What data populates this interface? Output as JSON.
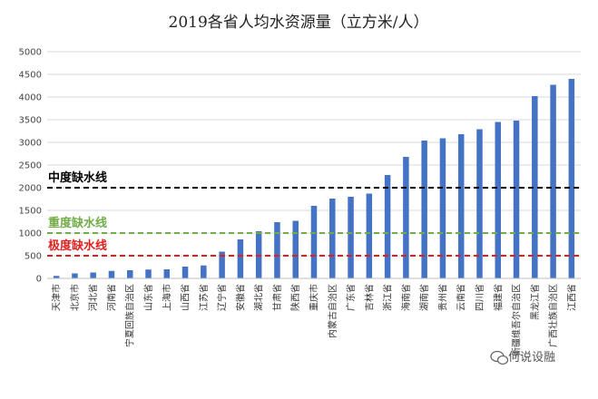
{
  "chart_data": {
    "type": "bar",
    "title": "2019各省人均水资源量（立方米/人）",
    "xlabel": "",
    "ylabel": "",
    "ylim": [
      0,
      5000
    ],
    "yticks": [
      0,
      500,
      1000,
      1500,
      2000,
      2500,
      3000,
      3500,
      4000,
      4500,
      5000
    ],
    "bar_color": "#4472c4",
    "categories": [
      "天津市",
      "北京市",
      "河北省",
      "河南省",
      "宁夏回族自治区",
      "山东省",
      "上海市",
      "山西省",
      "江苏省",
      "辽宁省",
      "安徽省",
      "湖北省",
      "甘肃省",
      "陕西省",
      "重庆市",
      "内蒙古自治区",
      "广东省",
      "吉林省",
      "浙江省",
      "海南省",
      "湖南省",
      "贵州省",
      "云南省",
      "四川省",
      "福建省",
      "新疆维吾尔自治区",
      "黑龙江省",
      "广西壮族自治区",
      "江西省"
    ],
    "values": [
      55,
      110,
      130,
      165,
      180,
      195,
      200,
      260,
      285,
      590,
      860,
      1040,
      1240,
      1270,
      1600,
      1760,
      1800,
      1870,
      2280,
      2680,
      3040,
      3090,
      3180,
      3290,
      3450,
      3480,
      4020,
      4270,
      4400
    ],
    "reference_lines": [
      {
        "label": "中度缺水线",
        "value": 2000,
        "color": "#000000"
      },
      {
        "label": "重度缺水线",
        "value": 1000,
        "color": "#70ad47"
      },
      {
        "label": "极度缺水线",
        "value": 500,
        "color": "#e02020"
      }
    ],
    "grid": true,
    "legend": "none"
  },
  "watermark": "何说设融"
}
